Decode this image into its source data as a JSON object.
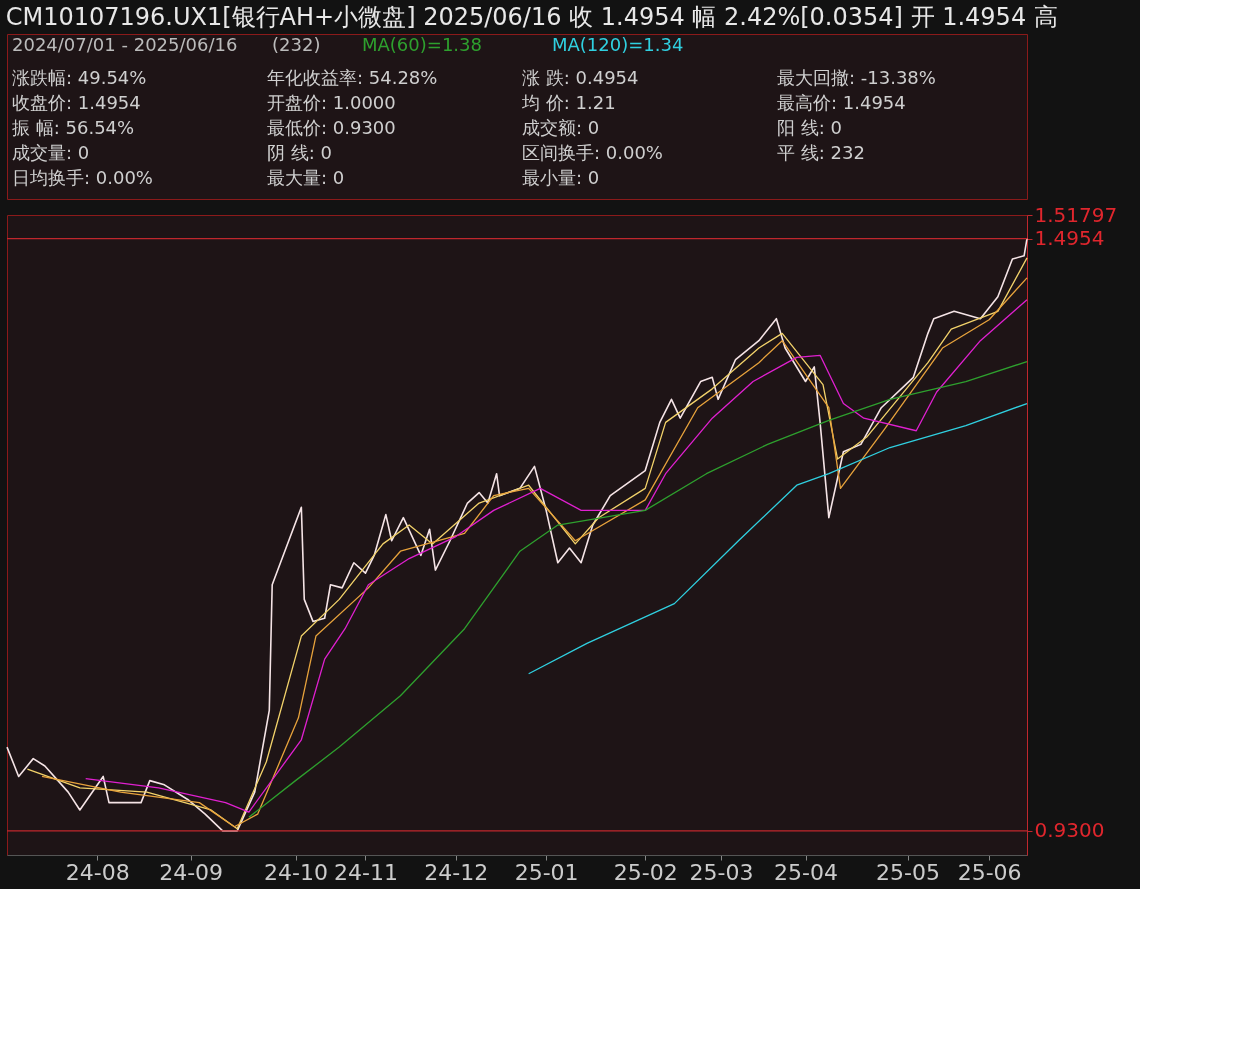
{
  "chart_data": {
    "type": "line",
    "title": "CM10107196.UX1[银行AH+小微盘]   2025/06/16   收 1.4954   幅 2.42%[0.0354]   开 1.4954   高",
    "xlim": [
      "2024-07-01",
      "2025-06-16"
    ],
    "xticks": [
      {
        "value": "2024-08-01",
        "label": "24-08"
      },
      {
        "value": "2024-09-02",
        "label": "24-09"
      },
      {
        "value": "2024-10-08",
        "label": "24-10"
      },
      {
        "value": "2024-11-01",
        "label": "24-11"
      },
      {
        "value": "2024-12-02",
        "label": "24-12"
      },
      {
        "value": "2025-01-02",
        "label": "25-01"
      },
      {
        "value": "2025-02-05",
        "label": "25-02"
      },
      {
        "value": "2025-03-03",
        "label": "25-03"
      },
      {
        "value": "2025-04-01",
        "label": "25-04"
      },
      {
        "value": "2025-05-06",
        "label": "25-05"
      },
      {
        "value": "2025-06-03",
        "label": "25-06"
      }
    ],
    "ylim": [
      0.907,
      1.51797
    ],
    "yticks": [
      {
        "value": 0.93,
        "label": "0.9300"
      },
      1.4954,
      1.51797
    ],
    "grid": false,
    "legend": "top",
    "line_style": "solid",
    "marker": "none",
    "ref_lines": [
      {
        "axis": "y",
        "value": 1.4954,
        "color": "#c0272d"
      },
      {
        "axis": "y",
        "value": 0.93,
        "color": "#c0272d"
      }
    ],
    "annotations": [
      "2024/07/01 - 2025/06/16",
      "(232)",
      "涨跌幅: 49.54%",
      "年化收益率: 54.28%",
      "涨  跌: 0.4954",
      "最大回撤: -13.38%",
      "收盘价: 1.4954",
      "开盘价: 1.0000",
      "均  价: 1.21",
      "最高价: 1.4954",
      "振  幅: 56.54%",
      "最低价: 0.9300",
      "成交额: 0",
      "阳  线: 0",
      "成交量: 0",
      "阴  线: 0",
      "区间换手: 0.00%",
      "平  线: 232",
      "日均换手: 0.00%",
      "最大量: 0",
      "最小量: 0"
    ],
    "series": [
      {
        "color": "#f5e4e6",
        "x": [
          "2024-07-01",
          "2024-07-05",
          "2024-07-10",
          "2024-07-14",
          "2024-07-22",
          "2024-07-26",
          "2024-08-03",
          "2024-08-05",
          "2024-08-16",
          "2024-08-19",
          "2024-08-24",
          "2024-09-01",
          "2024-09-07",
          "2024-09-13",
          "2024-09-18",
          "2024-09-24",
          "2024-09-29",
          "2024-09-30",
          "2024-10-10",
          "2024-10-11",
          "2024-10-14",
          "2024-10-18",
          "2024-10-20",
          "2024-10-24",
          "2024-10-28",
          "2024-11-01",
          "2024-11-04",
          "2024-11-08",
          "2024-11-10",
          "2024-11-14",
          "2024-11-20",
          "2024-11-23",
          "2024-11-25",
          "2024-11-30",
          "2024-12-06",
          "2024-12-10",
          "2024-12-13",
          "2024-12-16",
          "2024-12-17",
          "2024-12-24",
          "2024-12-29",
          "2025-01-02",
          "2025-01-06",
          "2025-01-10",
          "2025-01-14",
          "2025-01-18",
          "2025-01-24",
          "2025-02-05",
          "2025-02-10",
          "2025-02-14",
          "2025-02-17",
          "2025-02-24",
          "2025-02-28",
          "2025-03-02",
          "2025-03-08",
          "2025-03-16",
          "2025-03-22",
          "2025-03-25",
          "2025-04-01",
          "2025-04-04",
          "2025-04-06",
          "2025-04-09",
          "2025-04-14",
          "2025-04-20",
          "2025-04-27",
          "2025-05-08",
          "2025-05-13",
          "2025-05-15",
          "2025-05-22",
          "2025-05-31",
          "2025-06-06",
          "2025-06-11",
          "2025-06-15",
          "2025-06-16"
        ],
        "values": [
          1.01,
          0.982,
          0.999,
          0.992,
          0.967,
          0.95,
          0.982,
          0.957,
          0.957,
          0.978,
          0.974,
          0.96,
          0.946,
          0.93,
          0.93,
          0.967,
          1.045,
          1.165,
          1.239,
          1.151,
          1.13,
          1.133,
          1.165,
          1.162,
          1.186,
          1.176,
          1.193,
          1.232,
          1.207,
          1.229,
          1.193,
          1.218,
          1.179,
          1.207,
          1.243,
          1.253,
          1.243,
          1.271,
          1.25,
          1.257,
          1.278,
          1.236,
          1.186,
          1.2,
          1.186,
          1.222,
          1.25,
          1.274,
          1.32,
          1.342,
          1.324,
          1.359,
          1.363,
          1.342,
          1.38,
          1.398,
          1.419,
          1.391,
          1.359,
          1.373,
          1.32,
          1.229,
          1.292,
          1.299,
          1.334,
          1.363,
          1.405,
          1.419,
          1.426,
          1.419,
          1.44,
          1.476,
          1.479,
          1.4954
        ]
      },
      {
        "color": "#f3d36b",
        "x": [
          "2024-07-08",
          "2024-07-26",
          "2024-08-18",
          "2024-09-09",
          "2024-09-18",
          "2024-09-28",
          "2024-10-10",
          "2024-10-23",
          "2024-11-07",
          "2024-11-16",
          "2024-11-24",
          "2024-12-10",
          "2024-12-27",
          "2025-01-12",
          "2025-01-20",
          "2025-02-05",
          "2025-02-12",
          "2025-02-28",
          "2025-03-16",
          "2025-03-24",
          "2025-04-07",
          "2025-04-12",
          "2025-04-22",
          "2025-05-13",
          "2025-05-21",
          "2025-06-06",
          "2025-06-16"
        ],
        "values": [
          0.989,
          0.971,
          0.967,
          0.95,
          0.932,
          0.996,
          1.116,
          1.151,
          1.204,
          1.222,
          1.204,
          1.243,
          1.26,
          1.204,
          1.229,
          1.257,
          1.32,
          1.352,
          1.391,
          1.405,
          1.356,
          1.285,
          1.306,
          1.377,
          1.409,
          1.426,
          1.477
        ]
      },
      {
        "color": "#e8a33c",
        "x": [
          "2024-07-13",
          "2024-08-09",
          "2024-09-05",
          "2024-09-17",
          "2024-09-25",
          "2024-10-09",
          "2024-10-15",
          "2024-11-02",
          "2024-11-13",
          "2024-12-05",
          "2024-12-15",
          "2024-12-27",
          "2025-01-12",
          "2025-02-05",
          "2025-02-23",
          "2025-03-16",
          "2025-03-24",
          "2025-04-09",
          "2025-04-13",
          "2025-04-28",
          "2025-05-18",
          "2025-06-03",
          "2025-06-16"
        ],
        "values": [
          0.982,
          0.967,
          0.957,
          0.934,
          0.946,
          1.038,
          1.116,
          1.162,
          1.197,
          1.214,
          1.25,
          1.257,
          1.207,
          1.246,
          1.334,
          1.377,
          1.398,
          1.334,
          1.257,
          1.313,
          1.391,
          1.418,
          1.458
        ]
      },
      {
        "color": "#e020d0",
        "x": [
          "2024-07-28",
          "2024-08-22",
          "2024-09-14",
          "2024-09-22",
          "2024-10-10",
          "2024-10-18",
          "2024-10-25",
          "2024-11-02",
          "2024-11-16",
          "2024-12-02",
          "2024-12-15",
          "2024-12-31",
          "2025-01-14",
          "2025-02-05",
          "2025-02-12",
          "2025-02-28",
          "2025-03-14",
          "2025-03-29",
          "2025-04-06",
          "2025-04-14",
          "2025-04-21",
          "2025-05-09",
          "2025-05-16",
          "2025-05-31",
          "2025-06-16"
        ],
        "values": [
          0.98,
          0.971,
          0.957,
          0.948,
          1.017,
          1.094,
          1.123,
          1.165,
          1.19,
          1.211,
          1.236,
          1.257,
          1.236,
          1.236,
          1.271,
          1.324,
          1.359,
          1.382,
          1.384,
          1.338,
          1.324,
          1.312,
          1.349,
          1.398,
          1.437
        ]
      },
      {
        "name": "MA(60)=1.38",
        "color": "#2ea02e",
        "x": [
          "2024-09-22",
          "2024-10-08",
          "2024-10-23",
          "2024-11-13",
          "2024-12-05",
          "2024-12-24",
          "2025-01-06",
          "2025-02-05",
          "2025-02-26",
          "2025-03-19",
          "2025-04-09",
          "2025-04-30",
          "2025-05-26",
          "2025-06-16"
        ],
        "values": [
          0.943,
          0.978,
          1.01,
          1.059,
          1.123,
          1.197,
          1.222,
          1.236,
          1.271,
          1.299,
          1.322,
          1.342,
          1.359,
          1.378
        ]
      },
      {
        "name": "MA(120)=1.34",
        "color": "#30d0e0",
        "x": [
          "2024-12-27",
          "2025-01-16",
          "2025-02-15",
          "2025-03-09",
          "2025-03-29",
          "2025-04-09",
          "2025-04-30",
          "2025-05-26",
          "2025-06-16"
        ],
        "values": [
          1.08,
          1.109,
          1.147,
          1.207,
          1.26,
          1.271,
          1.296,
          1.317,
          1.338
        ]
      }
    ]
  }
}
